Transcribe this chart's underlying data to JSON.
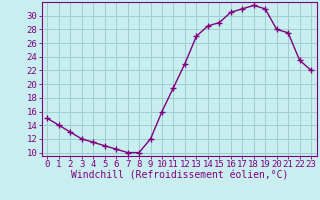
{
  "x": [
    0,
    1,
    2,
    3,
    4,
    5,
    6,
    7,
    8,
    9,
    10,
    11,
    12,
    13,
    14,
    15,
    16,
    17,
    18,
    19,
    20,
    21,
    22,
    23
  ],
  "y": [
    15.0,
    14.0,
    13.0,
    12.0,
    11.5,
    11.0,
    10.5,
    10.0,
    10.0,
    12.0,
    16.0,
    19.5,
    23.0,
    27.0,
    28.5,
    29.0,
    30.5,
    31.0,
    31.5,
    31.0,
    28.0,
    27.5,
    23.5,
    22.0
  ],
  "line_color": "#800080",
  "marker": "+",
  "marker_size": 4,
  "line_width": 1.0,
  "bg_color": "#c8eef0",
  "grid_color": "#a0ccd0",
  "xlabel": "Windchill (Refroidissement éolien,°C)",
  "xlabel_fontsize": 7,
  "ylabel_ticks": [
    10,
    12,
    14,
    16,
    18,
    20,
    22,
    24,
    26,
    28,
    30
  ],
  "ylim": [
    9.5,
    32
  ],
  "xlim": [
    -0.5,
    23.5
  ],
  "tick_fontsize": 6.5,
  "spine_color": "#800080",
  "font_family": "monospace"
}
